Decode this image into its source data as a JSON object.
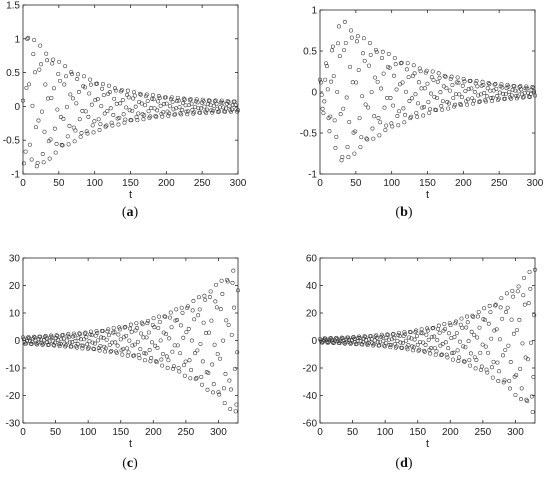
{
  "chart_data": [
    {
      "type": "scatter",
      "panel": "a",
      "xlabel": "t",
      "ylabel": "",
      "xlim": [
        0,
        300
      ],
      "ylim": [
        -1,
        1.5
      ],
      "xticks": [
        0,
        50,
        100,
        150,
        200,
        250,
        300
      ],
      "yticks": [
        -1,
        -0.5,
        0,
        0.5,
        1,
        1.5
      ],
      "ytick_labels": [
        "-1",
        "-0.5",
        "0",
        "0.5",
        "1",
        "1.5"
      ],
      "series": [
        {
          "envelope": "decay",
          "amplitude_start": 1.2,
          "amplitude_end": 0.05,
          "decay_rate": 0.0125,
          "omega": 0.72,
          "phase": 1.5,
          "t_start": 0,
          "t_end": 300,
          "t_step": 1.2
        }
      ]
    },
    {
      "type": "scatter",
      "panel": "b",
      "xlabel": "t",
      "ylabel": "",
      "xlim": [
        0,
        300
      ],
      "ylim": [
        -1,
        1
      ],
      "xticks": [
        0,
        50,
        100,
        150,
        200,
        250,
        300
      ],
      "yticks": [
        -1,
        -0.5,
        0,
        0.5,
        1
      ],
      "ytick_labels": [
        "-1",
        "-0.5",
        "0",
        "0.5",
        "1"
      ],
      "series": [
        {
          "envelope": "rise-decay",
          "amplitude_peak": 0.9,
          "t_peak": 30,
          "amplitude_end": 0.06,
          "omega": 0.72,
          "phase": 0.0,
          "t_start": 0,
          "t_end": 300,
          "t_step": 1.2
        }
      ]
    },
    {
      "type": "scatter",
      "panel": "c",
      "xlabel": "t",
      "ylabel": "",
      "xlim": [
        0,
        330
      ],
      "ylim": [
        -30,
        30
      ],
      "xticks": [
        0,
        50,
        100,
        150,
        200,
        250,
        300
      ],
      "yticks": [
        -30,
        -20,
        -10,
        0,
        10,
        20,
        30
      ],
      "ytick_labels": [
        "-30",
        "-20",
        "-10",
        "0",
        "10",
        "20",
        "30"
      ],
      "series": [
        {
          "envelope": "growth",
          "amplitude_start": 1.2,
          "amplitude_end": 28,
          "omega": 0.72,
          "phase": 0.3,
          "t_start": 0,
          "t_end": 330,
          "t_step": 1.2
        }
      ]
    },
    {
      "type": "scatter",
      "panel": "d",
      "xlabel": "t",
      "ylabel": "",
      "xlim": [
        0,
        330
      ],
      "ylim": [
        -60,
        60
      ],
      "xticks": [
        0,
        50,
        100,
        150,
        200,
        250,
        300
      ],
      "yticks": [
        -60,
        -40,
        -20,
        0,
        20,
        40,
        60
      ],
      "ytick_labels": [
        "-60",
        "-40",
        "-20",
        "0",
        "20",
        "40",
        "60"
      ],
      "series": [
        {
          "envelope": "growth",
          "amplitude_start": 1.5,
          "amplitude_end": 55,
          "omega": 0.72,
          "phase": 0.8,
          "t_start": 0,
          "t_end": 330,
          "t_step": 1.2
        }
      ]
    }
  ],
  "captions": [
    {
      "label": "a"
    },
    {
      "label": "b"
    },
    {
      "label": "c"
    },
    {
      "label": "d"
    }
  ],
  "marker_color": "#333333",
  "axis_color": "#262626"
}
